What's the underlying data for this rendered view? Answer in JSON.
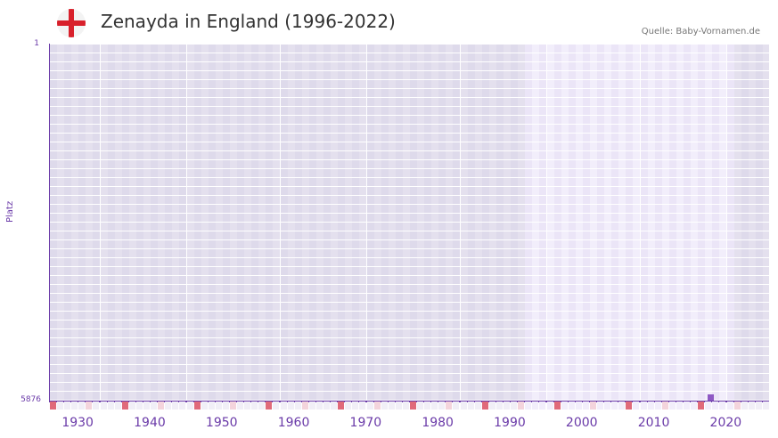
{
  "header": {
    "title": "Zenayda in England (1996-2022)",
    "source": "Quelle: Baby-Vornamen.de",
    "flag_icon": "england-flag-icon"
  },
  "colors": {
    "axis": "#6a3aa8",
    "cell_out_of_range": "#e4e0ee",
    "cell_out_of_range_alt": "#dedaeb",
    "cell_in_range": "#f2eefb",
    "cell_in_range_alt": "#ebe5f7",
    "decade_marker": "#e06a7a",
    "half_decade_marker": "#f4d4dc",
    "point": "#8e59c4"
  },
  "chart_data": {
    "type": "scatter",
    "title": "Zenayda in England (1996-2022)",
    "xlabel": "",
    "ylabel": "Platz",
    "x_range": [
      1928,
      2028
    ],
    "y_range": [
      1,
      5876
    ],
    "y_inverted": true,
    "y_ticks": [
      "1",
      "5876"
    ],
    "x_ticks": [
      "1930",
      "1940",
      "1950",
      "1960",
      "1970",
      "1980",
      "1990",
      "2000",
      "2010",
      "2020"
    ],
    "data_range_years": [
      1996,
      2022
    ],
    "points": [
      {
        "year": 2019,
        "rank": 5876
      }
    ],
    "grid": true,
    "legend": null
  },
  "axis": {
    "y_label": "Platz",
    "y_top": "1",
    "y_bottom": "5876",
    "x_ticks": [
      "1930",
      "1940",
      "1950",
      "1960",
      "1970",
      "1980",
      "1990",
      "2000",
      "2010",
      "2020"
    ]
  }
}
